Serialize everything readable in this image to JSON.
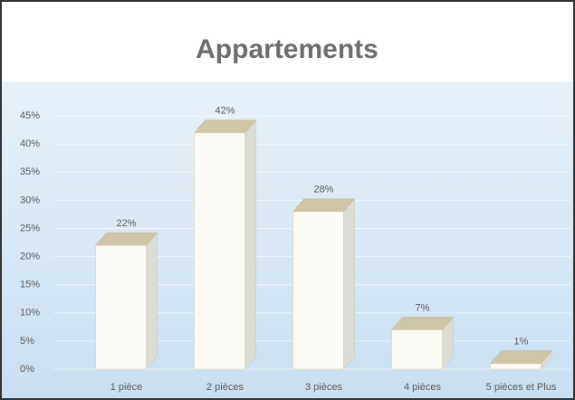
{
  "chart_data": {
    "type": "bar3d",
    "title": "Appartements",
    "categories": [
      "1 pièce",
      "2 pièces",
      "3 pièces",
      "4 pièces",
      "5 pièces et Plus"
    ],
    "values": [
      22,
      42,
      28,
      7,
      1
    ],
    "value_labels": [
      "22%",
      "42%",
      "28%",
      "7%",
      "1%"
    ],
    "color": "#fbfaf5",
    "ylim": [
      0,
      50
    ],
    "yticks": [
      {
        "value": 0,
        "label": "0%"
      },
      {
        "value": 5,
        "label": "5%"
      },
      {
        "value": 10,
        "label": "10%"
      },
      {
        "value": 15,
        "label": "15%"
      },
      {
        "value": 20,
        "label": "20%"
      },
      {
        "value": 25,
        "label": "25%"
      },
      {
        "value": 30,
        "label": "30%"
      },
      {
        "value": 35,
        "label": "35%"
      },
      {
        "value": 40,
        "label": "40%"
      },
      {
        "value": 45,
        "label": "45%"
      }
    ],
    "grid": true
  }
}
